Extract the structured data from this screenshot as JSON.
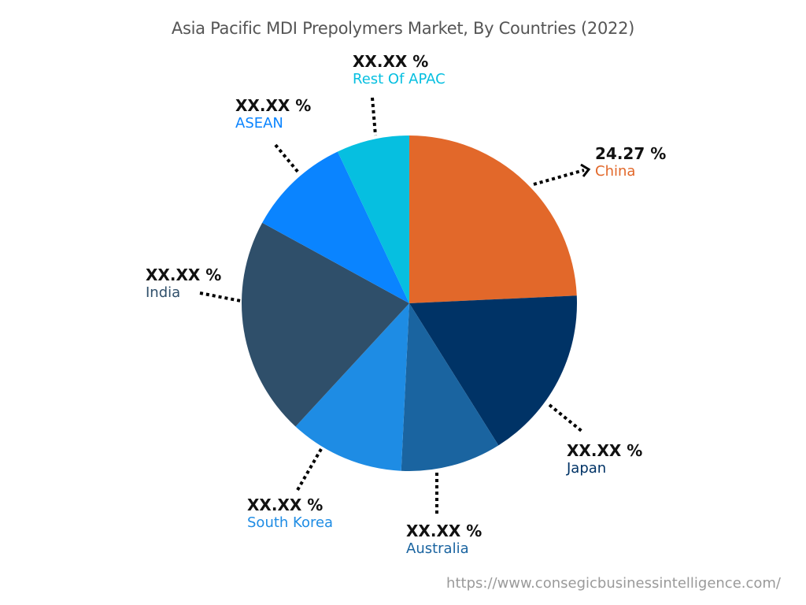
{
  "chart_data": {
    "type": "pie",
    "title": "Asia Pacific MDI Prepolymers Market, By Countries (2022)",
    "categories": [
      "China",
      "Japan",
      "Australia",
      "South Korea",
      "India",
      "ASEAN",
      "Rest Of APAC"
    ],
    "values": [
      24.27,
      16.8,
      9.7,
      11.1,
      21.1,
      10.0,
      7.03
    ],
    "value_labels": [
      "24.27 %",
      "XX.XX %",
      "XX.XX %",
      "XX.XX %",
      "XX.XX %",
      "XX.XX %",
      "XX.XX %"
    ],
    "colors": [
      "#e2682a",
      "#003366",
      "#1a64a0",
      "#1e8ce4",
      "#2f4f6a",
      "#0a84ff",
      "#06bfe0"
    ],
    "start_angle_deg": 0,
    "direction": "clockwise",
    "legend": "none (callout labels)"
  },
  "title": "Asia Pacific MDI Prepolymers Market, By Countries (2022)",
  "labels": {
    "china": {
      "value": "24.27 %",
      "name": "China"
    },
    "japan": {
      "value": "XX.XX %",
      "name": "Japan"
    },
    "australia": {
      "value": "XX.XX %",
      "name": "Australia"
    },
    "south_korea": {
      "value": "XX.XX %",
      "name": "South Korea"
    },
    "india": {
      "value": "XX.XX %",
      "name": "India"
    },
    "asean": {
      "value": "XX.XX %",
      "name": "ASEAN"
    },
    "rest": {
      "value": "XX.XX %",
      "name": "Rest Of APAC"
    }
  },
  "footer": {
    "url": "https://www.consegicbusinessintelligence.com/"
  }
}
